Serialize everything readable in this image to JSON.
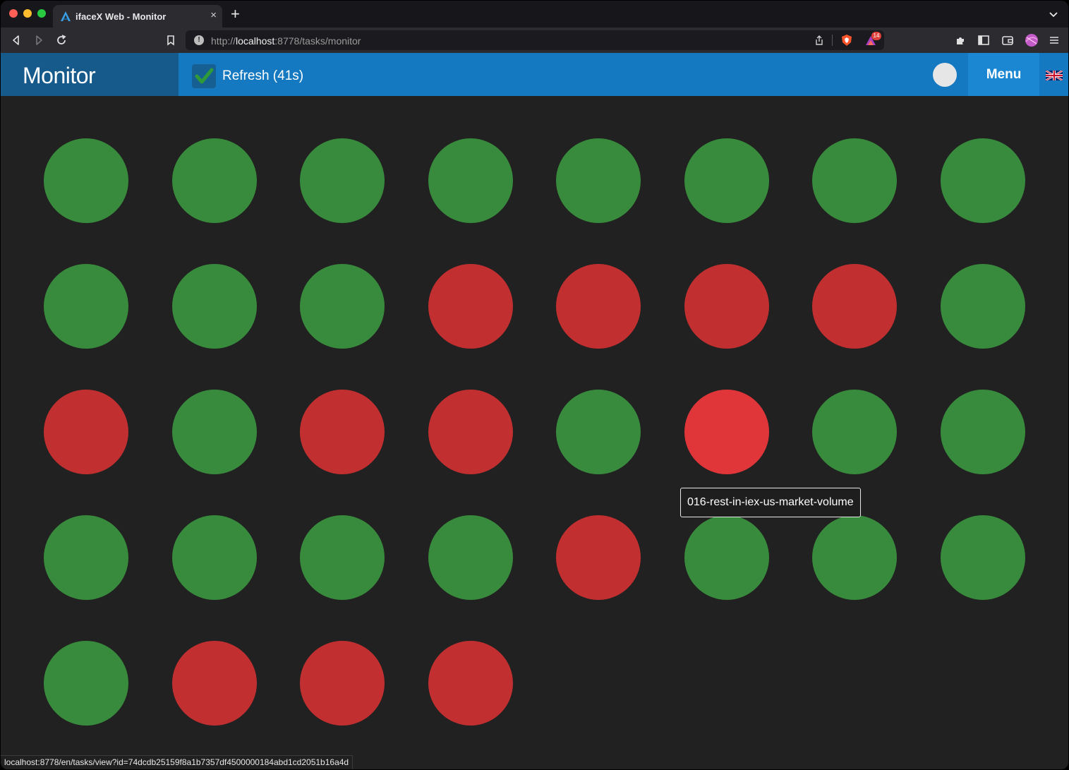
{
  "browser": {
    "tab_title": "ifaceX Web - Monitor",
    "tab_close": "×",
    "new_tab": "+",
    "url_prefix": "http://",
    "url_host": "localhost",
    "url_rest": ":8778/tasks/monitor",
    "info_glyph": "!",
    "rewards_count": "14",
    "status_url": "localhost:8778/en/tasks/view?id=74dcdb25159f8a1b7357df4500000184abd1cd2051b16a4d",
    "icons": [
      "back-icon",
      "forward-icon",
      "reload-icon",
      "bookmark-icon",
      "info-icon",
      "share-icon",
      "brave-shield-icon",
      "brave-rewards-icon",
      "extensions-icon",
      "sidebar-icon",
      "wallet-icon",
      "profile-icon",
      "menu-icon",
      "tab-dropdown-icon"
    ]
  },
  "header": {
    "title": "Monitor",
    "refresh_label": "Refresh (41s)",
    "refresh_checked": true,
    "menu_label": "Menu",
    "language": "en-GB",
    "colors": {
      "brand_bg": "#165a8c",
      "header_bg": "#1479c0",
      "menu_bg": "#1b86d2"
    }
  },
  "tasks": {
    "colors": {
      "ok": "#388a3c",
      "err": "#c22f30",
      "hover": "#e13639"
    },
    "statuses": [
      "ok",
      "ok",
      "ok",
      "ok",
      "ok",
      "ok",
      "ok",
      "ok",
      "ok",
      "ok",
      "ok",
      "err",
      "err",
      "err",
      "err",
      "ok",
      "err",
      "ok",
      "err",
      "err",
      "ok",
      "hover",
      "ok",
      "ok",
      "ok",
      "ok",
      "ok",
      "ok",
      "err",
      "ok",
      "ok",
      "ok",
      "ok",
      "err",
      "err",
      "err"
    ],
    "tooltip": "016-rest-in-iex-us-market-volume"
  }
}
